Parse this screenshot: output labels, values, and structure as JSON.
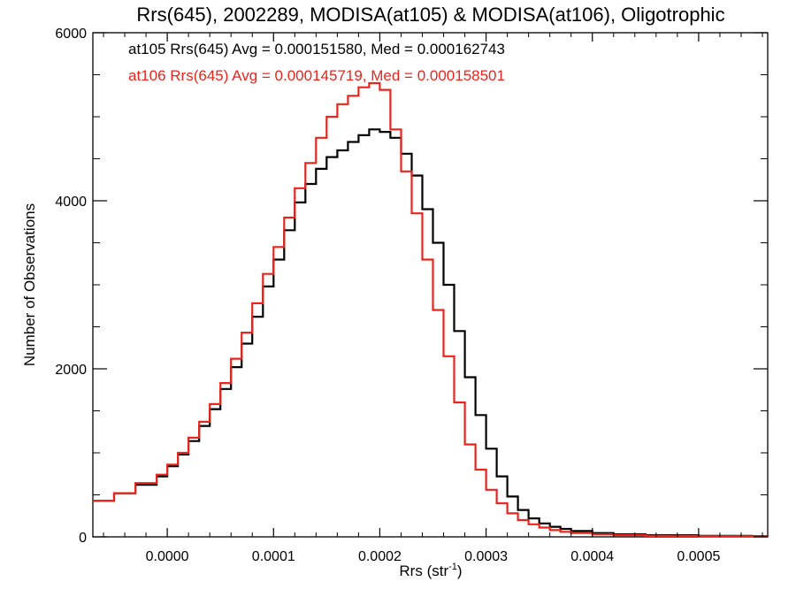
{
  "chart_data": {
    "type": "line",
    "title": "Rrs(645), 2002289, MODISA(at105) & MODISA(at106), Oligotrophic",
    "xlabel": "Rrs (str",
    "xlabel_sup": "-1",
    "xlabel_suffix": ")",
    "ylabel": "Number of Observations",
    "xlim": [
      -7e-05,
      0.000565
    ],
    "ylim": [
      0,
      6000
    ],
    "x_ticks": [
      0.0,
      0.0001,
      0.0002,
      0.0003,
      0.0004,
      0.0005
    ],
    "x_tick_labels": [
      "0.0000",
      "0.0001",
      "0.0002",
      "0.0003",
      "0.0004",
      "0.0005"
    ],
    "y_ticks": [
      0,
      2000,
      4000,
      6000
    ],
    "y_tick_labels": [
      "0",
      "2000",
      "4000",
      "6000"
    ],
    "grid": false,
    "step": true,
    "legend_position": "top-left",
    "annotations": [
      {
        "text": "at105 Rrs(645) Avg = 0.000151580, Med = 0.000162743",
        "color": "#000000"
      },
      {
        "text": "at106 Rrs(645) Avg = 0.000145719, Med = 0.000158501",
        "color": "#e8251d"
      }
    ],
    "series": [
      {
        "color": "#000000",
        "x": [
          -7e-05,
          -5e-05,
          -3e-05,
          -1e-05,
          0.0,
          1e-05,
          2e-05,
          3e-05,
          4e-05,
          5e-05,
          6e-05,
          7e-05,
          8e-05,
          9e-05,
          0.0001,
          0.00011,
          0.00012,
          0.00013,
          0.00014,
          0.00015,
          0.00016,
          0.00017,
          0.00018,
          0.00019,
          0.0002,
          0.00021,
          0.00022,
          0.00023,
          0.00024,
          0.00025,
          0.00026,
          0.00027,
          0.00028,
          0.00029,
          0.0003,
          0.00031,
          0.00032,
          0.00033,
          0.00034,
          0.00035,
          0.00036,
          0.00037,
          0.00038,
          0.0004,
          0.00042,
          0.00045,
          0.0005,
          0.00055,
          0.000565
        ],
        "y": [
          430,
          520,
          620,
          720,
          840,
          980,
          1140,
          1320,
          1520,
          1760,
          2020,
          2300,
          2620,
          2980,
          3300,
          3650,
          3980,
          4200,
          4380,
          4520,
          4600,
          4700,
          4780,
          4850,
          4820,
          4750,
          4560,
          4300,
          3900,
          3500,
          3000,
          2450,
          1900,
          1450,
          1050,
          720,
          480,
          320,
          220,
          160,
          120,
          95,
          70,
          45,
          30,
          20,
          12,
          8,
          6
        ]
      },
      {
        "color": "#e8251d",
        "x": [
          -7e-05,
          -5e-05,
          -3e-05,
          -1e-05,
          0.0,
          1e-05,
          2e-05,
          3e-05,
          4e-05,
          5e-05,
          6e-05,
          7e-05,
          8e-05,
          9e-05,
          0.0001,
          0.00011,
          0.00012,
          0.00013,
          0.00014,
          0.00015,
          0.00016,
          0.00017,
          0.00018,
          0.00019,
          0.0002,
          0.00021,
          0.00022,
          0.00023,
          0.00024,
          0.00025,
          0.00026,
          0.00027,
          0.00028,
          0.00029,
          0.0003,
          0.00031,
          0.00032,
          0.00033,
          0.00034,
          0.00035,
          0.00036,
          0.00037,
          0.00038,
          0.0004,
          0.00042,
          0.00045,
          0.0005,
          0.00055,
          0.000565
        ],
        "y": [
          430,
          520,
          640,
          740,
          860,
          1000,
          1180,
          1370,
          1580,
          1830,
          2120,
          2430,
          2780,
          3130,
          3450,
          3800,
          4150,
          4450,
          4750,
          5000,
          5150,
          5250,
          5350,
          5400,
          5320,
          4850,
          4350,
          3850,
          3300,
          2700,
          2150,
          1600,
          1100,
          800,
          560,
          400,
          280,
          200,
          150,
          110,
          80,
          60,
          45,
          30,
          20,
          12,
          8,
          5,
          4
        ]
      }
    ]
  }
}
